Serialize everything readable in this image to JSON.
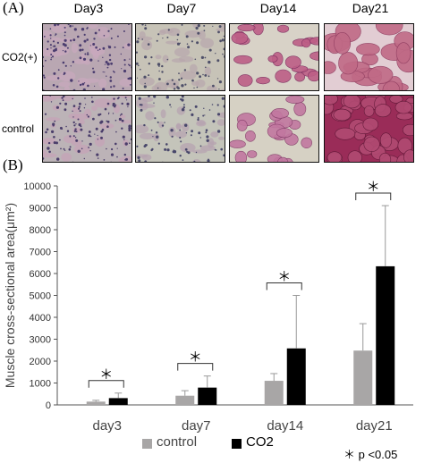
{
  "panel_a": {
    "label": "(A)",
    "columns": [
      "Day3",
      "Day7",
      "Day14",
      "Day21"
    ],
    "rows": [
      "CO2(+)",
      "control"
    ],
    "tiles": [
      {
        "row": 0,
        "col": 0,
        "base": "#b9a7b2",
        "fiber": "#c9a8bd",
        "dark": "#4b3d6f",
        "density": "high"
      },
      {
        "row": 0,
        "col": 1,
        "base": "#c7c3b7",
        "fiber": "#b8a7ad",
        "dark": "#4e4f68",
        "density": "mid"
      },
      {
        "row": 0,
        "col": 2,
        "base": "#d8d2c7",
        "fiber": "#bd5e86",
        "dark": "#7a2c5e",
        "density": "fibers"
      },
      {
        "row": 0,
        "col": 3,
        "base": "#e2cdd3",
        "fiber": "#c06a86",
        "dark": "#8d3a5e",
        "density": "large"
      },
      {
        "row": 1,
        "col": 0,
        "base": "#bcb3b7",
        "fiber": "#c6a2b6",
        "dark": "#4a3d6a",
        "density": "high"
      },
      {
        "row": 1,
        "col": 1,
        "base": "#c4c4ba",
        "fiber": "#b7a3b0",
        "dark": "#48476a",
        "density": "mid"
      },
      {
        "row": 1,
        "col": 2,
        "base": "#d6d1c4",
        "fiber": "#c278a0",
        "dark": "#803a66",
        "density": "fibers"
      },
      {
        "row": 1,
        "col": 3,
        "base": "#9a2c58",
        "fiber": "#b14a72",
        "dark": "#5e1736",
        "density": "dense"
      }
    ]
  },
  "panel_b": {
    "label": "(B)",
    "note": "＊ p <0.05",
    "star": "＊"
  },
  "chart_data": {
    "type": "bar",
    "categories": [
      "day3",
      "day7",
      "day14",
      "day21"
    ],
    "series": [
      {
        "name": "control",
        "color": "#a8a6a6",
        "values": [
          150,
          420,
          1100,
          2480
        ],
        "error": [
          60,
          230,
          330,
          1230
        ]
      },
      {
        "name": "CO2",
        "color": "#000000",
        "values": [
          310,
          790,
          2580,
          6330
        ],
        "error": [
          230,
          530,
          2420,
          2770
        ]
      }
    ],
    "ylabel": "Muscle cross-sectional area(μm²)",
    "ylim": [
      0,
      10000
    ],
    "yticks": [
      0,
      1000,
      2000,
      3000,
      4000,
      5000,
      6000,
      7000,
      8000,
      9000,
      10000
    ],
    "significance": [
      "＊",
      "＊",
      "＊",
      "＊"
    ],
    "legend": "bottom",
    "grid": false
  }
}
